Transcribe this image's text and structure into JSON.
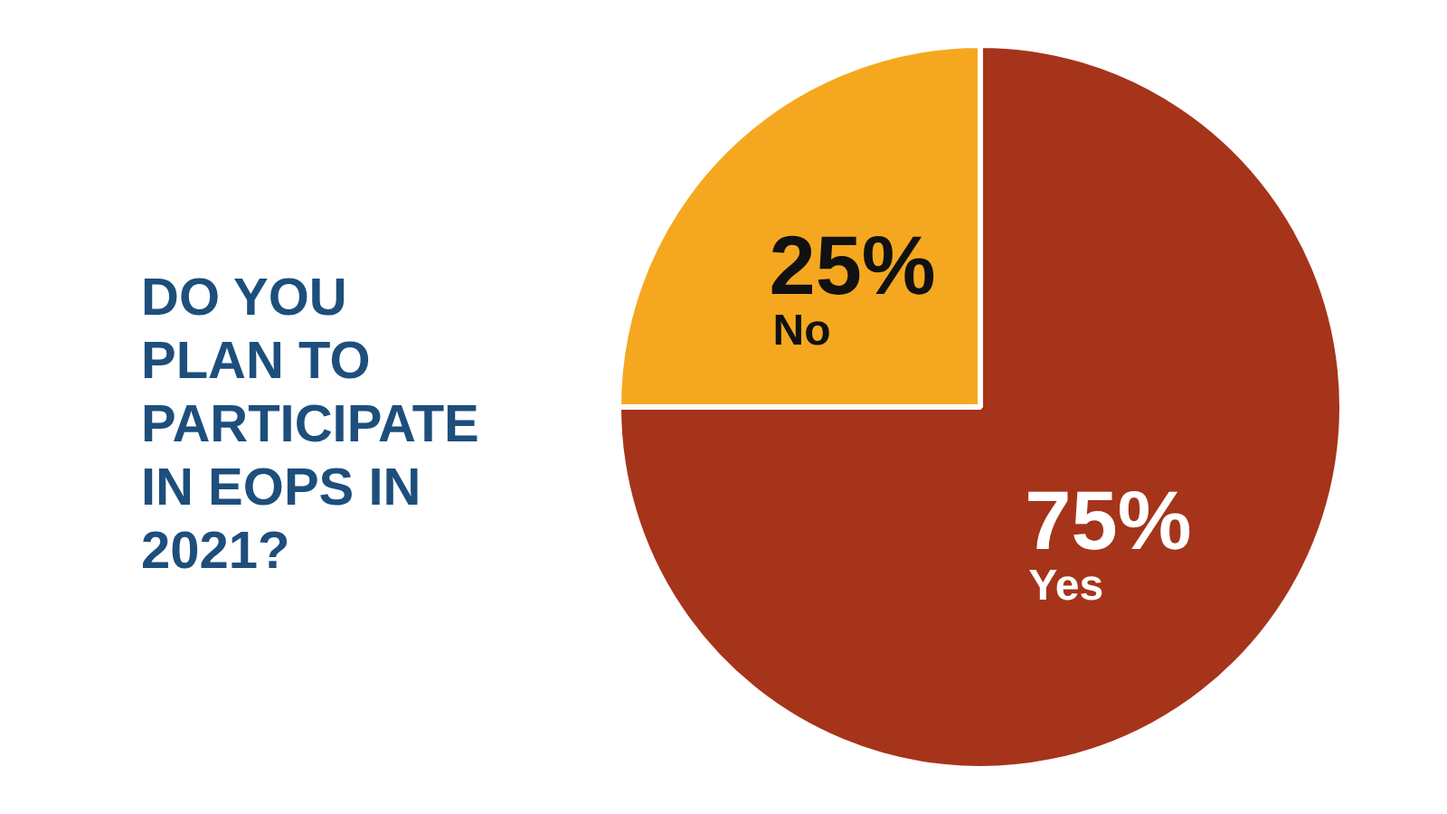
{
  "chart_data": {
    "type": "pie",
    "title": "DO YOU PLAN TO PARTICIPATE IN EOPS IN 2021?",
    "categories": [
      "Yes",
      "No"
    ],
    "values": [
      75,
      25
    ],
    "colors": [
      "#a5341a",
      "#f5a81f"
    ],
    "value_labels": [
      "75%",
      "25%"
    ],
    "legend": false
  }
}
